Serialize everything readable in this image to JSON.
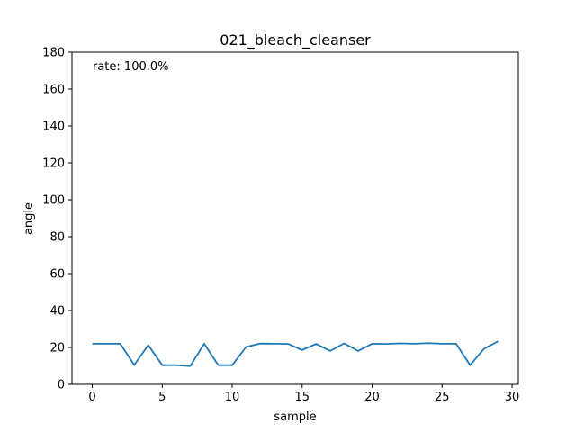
{
  "chart_data": {
    "type": "line",
    "title": "021_bleach_cleanser",
    "xlabel": "sample",
    "ylabel": "angle",
    "annotation": "rate: 100.0%",
    "xlim": [
      -1.45,
      30.45
    ],
    "ylim": [
      0,
      180
    ],
    "xticks": [
      0,
      5,
      10,
      15,
      20,
      25,
      30
    ],
    "yticks": [
      0,
      20,
      40,
      60,
      80,
      100,
      120,
      140,
      160,
      180
    ],
    "grid": false,
    "line_color": "#1f77b4",
    "series": [
      {
        "x": [
          0,
          1,
          2,
          3,
          4,
          5,
          6,
          7,
          8,
          9,
          10,
          11,
          12,
          13,
          14,
          15,
          16,
          17,
          18,
          19,
          20,
          21,
          22,
          23,
          24,
          25,
          26,
          27,
          28,
          29
        ],
        "values": [
          22.0,
          22.0,
          22.0,
          10.5,
          21.3,
          10.4,
          10.4,
          9.9,
          22.0,
          10.4,
          10.4,
          20.3,
          22.1,
          22.0,
          21.9,
          18.6,
          21.9,
          18.1,
          22.2,
          18.1,
          22.0,
          21.9,
          22.2,
          22.0,
          22.3,
          22.0,
          22.0,
          10.4,
          19.3,
          23.3
        ]
      }
    ]
  }
}
